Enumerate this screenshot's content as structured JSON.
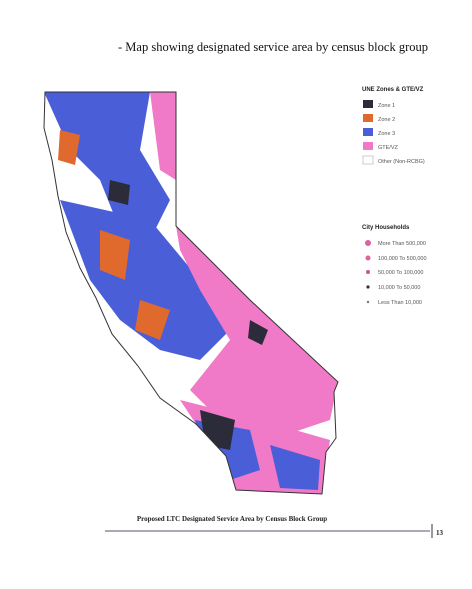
{
  "header": {
    "title": "- Map showing designated service area by census block group"
  },
  "zones_legend": {
    "title": "UNE Zones & GTE/VZ",
    "items": [
      "Zone 1",
      "Zone 2",
      "Zone 3",
      "GTE/VZ",
      "Other (Non-RCBG)"
    ]
  },
  "households_legend": {
    "title": "City Households",
    "items": [
      "More Than 500,000",
      "100,000 To 500,000",
      "50,000 To 100,000",
      "10,000 To 50,000",
      "Less Than 10,000"
    ]
  },
  "caption": "Proposed LTC Designated Service Area by Census Block Group",
  "page_number": "13"
}
